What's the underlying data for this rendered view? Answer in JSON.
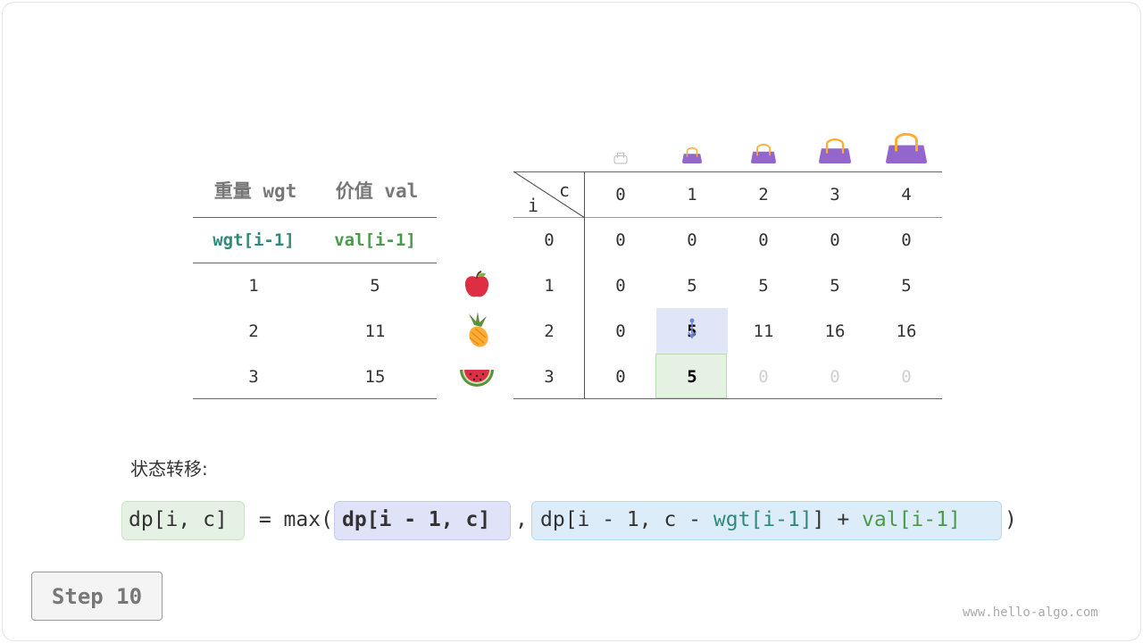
{
  "left_table": {
    "headers": [
      "重量 wgt",
      "价值 val"
    ],
    "subheaders": [
      "wgt[i-1]",
      "val[i-1]"
    ],
    "rows": [
      [
        "1",
        "5"
      ],
      [
        "2",
        "11"
      ],
      [
        "3",
        "15"
      ]
    ]
  },
  "items": [
    "apple-icon",
    "pineapple-icon",
    "watermelon-icon"
  ],
  "dp_table": {
    "corner_c": "c",
    "corner_i": "i",
    "col_headers": [
      "0",
      "1",
      "2",
      "3",
      "4"
    ],
    "row_headers": [
      "0",
      "1",
      "2",
      "3"
    ],
    "rows": [
      [
        "0",
        "0",
        "0",
        "0",
        "0"
      ],
      [
        "0",
        "5",
        "5",
        "5",
        "5"
      ],
      [
        "0",
        "5",
        "11",
        "16",
        "16"
      ],
      [
        "0",
        "5",
        "0",
        "0",
        "0"
      ]
    ],
    "highlight_source": {
      "row": 2,
      "col": 1,
      "color": "#e0e5f8"
    },
    "highlight_target": {
      "row": 3,
      "col": 1,
      "color": "#e5f1e3"
    }
  },
  "formula": {
    "label": "状态转移:",
    "lhs": "dp[i, c]",
    "eq": " = max(",
    "arg1": "dp[i - 1, c]",
    "comma": ",",
    "arg2_a": "dp[i - 1, c - ",
    "arg2_wgt": "wgt[i-1]",
    "arg2_b": "] + ",
    "arg2_val": "val[i-1]",
    "close": ")"
  },
  "step_button": "Step 10",
  "watermark": "www.hello-algo.com"
}
